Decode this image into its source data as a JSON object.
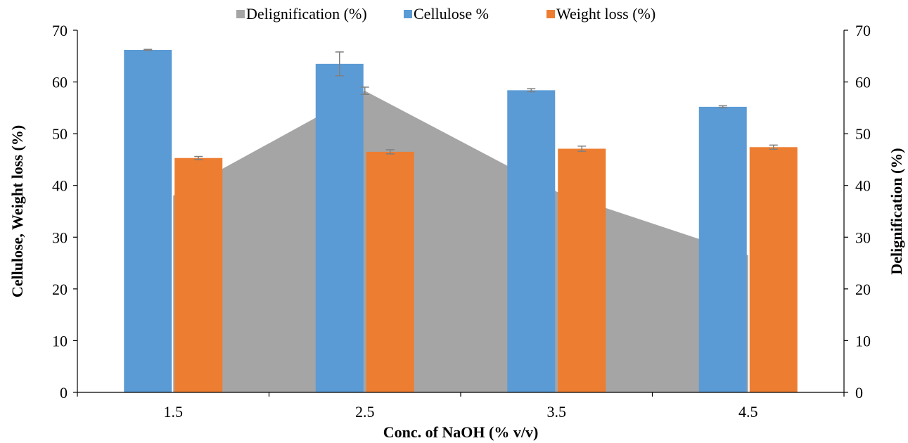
{
  "chart_data": {
    "type": "bar",
    "categories": [
      "1.5",
      "2.5",
      "3.5",
      "4.5"
    ],
    "xlabel": "Conc. of NaOH (% v/v)",
    "ylabel": "Cellulose, Weight loss (%)",
    "y2label": "Delignification (%)",
    "ylim": [
      0,
      70
    ],
    "y2lim": [
      0,
      70
    ],
    "yticks": [
      "0",
      "10",
      "20",
      "30",
      "40",
      "50",
      "60",
      "70"
    ],
    "y2ticks": [
      "0",
      "10",
      "20",
      "30",
      "40",
      "50",
      "60",
      "70"
    ],
    "legend_position": "top",
    "grid": false,
    "area_series": {
      "name": "Delignification (%)",
      "type": "area",
      "axis": "secondary",
      "color": "#a5a5a5",
      "values": [
        38,
        58.3,
        38.8,
        26.5
      ],
      "errors": [
        0,
        0.7,
        0,
        0
      ]
    },
    "series": [
      {
        "name": "Cellulose %",
        "type": "bar",
        "axis": "primary",
        "color": "#5b9bd5",
        "values": [
          66.2,
          63.5,
          58.4,
          55.2
        ],
        "errors": [
          0.1,
          2.3,
          0.3,
          0.2
        ]
      },
      {
        "name": "Weight loss (%)",
        "type": "bar",
        "axis": "primary",
        "color": "#ed7d31",
        "values": [
          45.3,
          46.5,
          47.1,
          47.4
        ],
        "errors": [
          0.3,
          0.4,
          0.5,
          0.4
        ]
      }
    ],
    "legend": [
      "Delignification (%)",
      "Cellulose %",
      "Weight loss (%)"
    ]
  }
}
